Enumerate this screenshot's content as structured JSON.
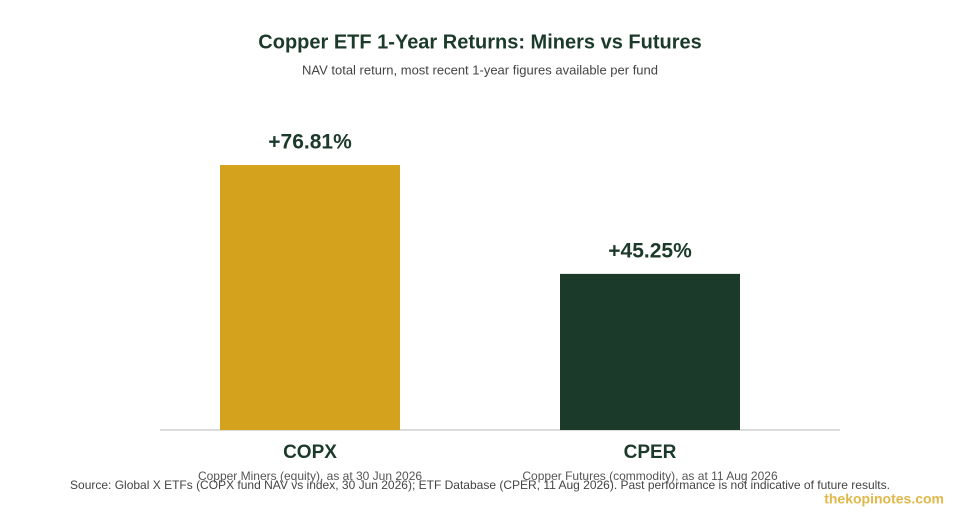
{
  "chart_data": {
    "type": "bar",
    "title": "Copper ETF 1-Year Returns: Miners vs Futures",
    "subtitle": "NAV total return, most recent 1-year figures available per fund",
    "categories": [
      "COPX",
      "CPER"
    ],
    "category_notes": [
      "Copper Miners (equity), as at 30 Jun 2026",
      "Copper Futures (commodity), as at 11 Aug 2026"
    ],
    "values": [
      76.81,
      45.25
    ],
    "value_labels": [
      "+76.81%",
      "+45.25%"
    ],
    "colors": [
      "#d4a21c",
      "#1c3a2a"
    ],
    "source": "Source: Global X ETFs (COPX fund NAV vs index, 30 Jun 2026); ETF Database (CPER, 11 Aug 2026). Past performance is not indicative of future results.",
    "watermark": "thekopinotes.com"
  }
}
